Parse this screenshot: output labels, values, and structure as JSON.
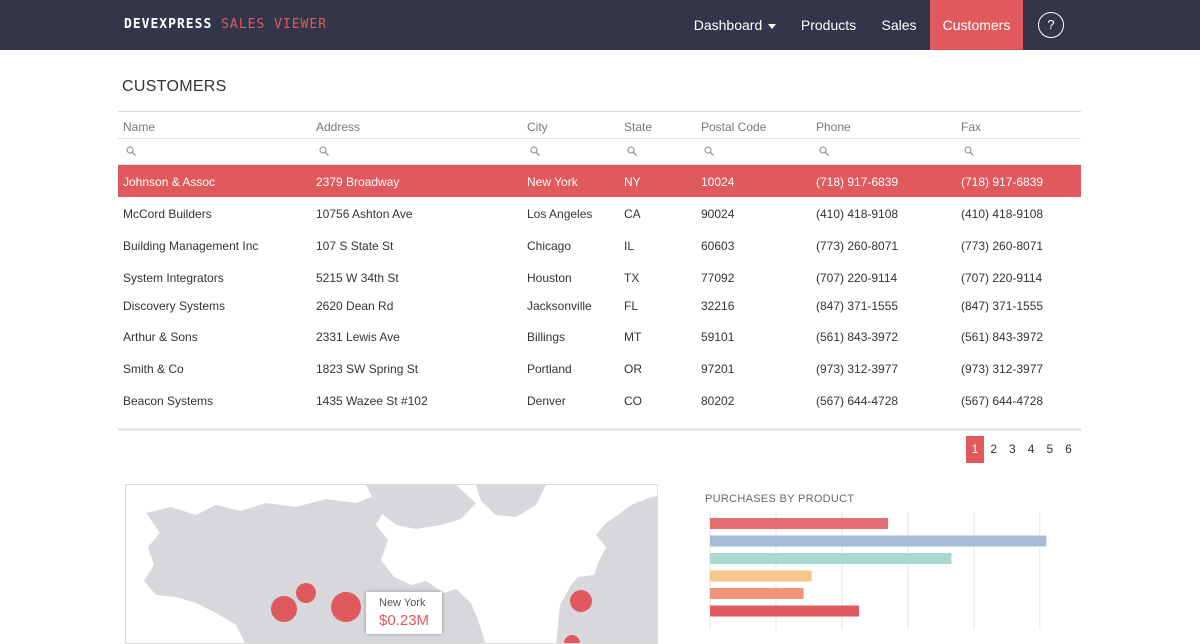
{
  "app": {
    "brand_primary": "DEVEXPRESS",
    "brand_secondary": "SALES VIEWER"
  },
  "nav": {
    "items": [
      {
        "label": "Dashboard",
        "active": false,
        "dropdown": true
      },
      {
        "label": "Products",
        "active": false
      },
      {
        "label": "Sales",
        "active": false
      },
      {
        "label": "Customers",
        "active": true
      }
    ],
    "help_label": "?"
  },
  "page": {
    "title": "CUSTOMERS"
  },
  "grid": {
    "columns": [
      "Name",
      "Address",
      "City",
      "State",
      "Postal Code",
      "Phone",
      "Fax"
    ],
    "rows": [
      [
        "Johnson & Assoc",
        "2379 Broadway",
        "New York",
        "NY",
        "10024",
        "(718) 917-6839",
        "(718) 917-6839"
      ],
      [
        "McCord Builders",
        "10756 Ashton Ave",
        "Los Angeles",
        "CA",
        "90024",
        "(410) 418-9108",
        "(410) 418-9108"
      ],
      [
        "Building Management Inc",
        "107 S State St",
        "Chicago",
        "IL",
        "60603",
        "(773) 260-8071",
        "(773) 260-8071"
      ],
      [
        "System Integrators",
        "5215 W 34th St",
        "Houston",
        "TX",
        "77092",
        "(707) 220-9114",
        "(707) 220-9114"
      ],
      [
        "Discovery Systems",
        "2620 Dean Rd",
        "Jacksonville",
        "FL",
        "32216",
        "(847) 371-1555",
        "(847) 371-1555"
      ],
      [
        "Arthur & Sons",
        "2331 Lewis Ave",
        "Billings",
        "MT",
        "59101",
        "(561) 843-3972",
        "(561) 843-3972"
      ],
      [
        "Smith & Co",
        "1823 SW Spring St",
        "Portland",
        "OR",
        "97201",
        "(973) 312-3977",
        "(973) 312-3977"
      ],
      [
        "Beacon Systems",
        "1435 Wazee St #102",
        "Denver",
        "CO",
        "80202",
        "(567) 644-4728",
        "(567) 644-4728"
      ]
    ],
    "selected_row": 0
  },
  "pager": {
    "pages": [
      "1",
      "2",
      "3",
      "4",
      "5",
      "6"
    ],
    "current": "1"
  },
  "map": {
    "tooltip_city": "New York",
    "tooltip_value": "$0.23M"
  },
  "chart_data": {
    "type": "bar",
    "orientation": "horizontal",
    "title": "PURCHASES BY PRODUCT",
    "categories": [
      "",
      "",
      "",
      "",
      "",
      ""
    ],
    "values": [
      1.35,
      2.55,
      1.83,
      0.77,
      0.71,
      1.13
    ],
    "colors": [
      "#e36d70",
      "#a7bbd6",
      "#a9d8cf",
      "#f6c78a",
      "#ef9479",
      "#e0595c"
    ],
    "xlim": [
      0,
      2.6
    ],
    "grid": true
  },
  "colors": {
    "accent": "#e0595c",
    "navbar": "#33364a"
  }
}
